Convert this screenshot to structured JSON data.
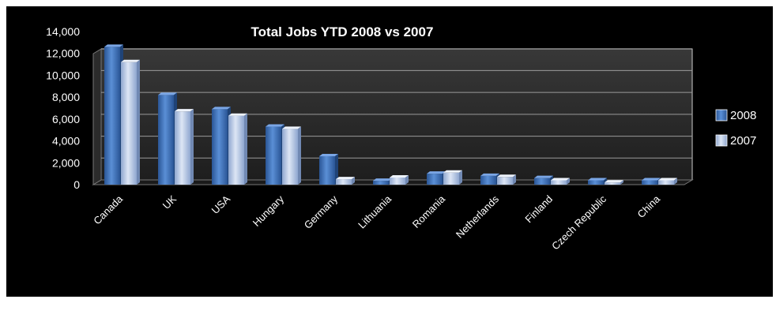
{
  "chart_data": {
    "type": "bar",
    "title": "Total Jobs  YTD 2008 vs 2007",
    "xlabel": "",
    "ylabel": "",
    "ylim": [
      0,
      14000
    ],
    "yticks": [
      "0",
      "2,000",
      "4,000",
      "6,000",
      "8,000",
      "10,000",
      "12,000",
      "14,000"
    ],
    "grid": true,
    "legend": "right",
    "categories": [
      "Canada",
      "UK",
      "USA",
      "Hungary",
      "Germany",
      "Lithuania",
      "Romania",
      "Netherlands",
      "Finland",
      "Czech Republic",
      "China"
    ],
    "series": [
      {
        "name": "2008",
        "color": "#3d6fb5",
        "values": [
          12600,
          8200,
          6900,
          5300,
          2600,
          350,
          1000,
          800,
          600,
          400,
          400
        ]
      },
      {
        "name": "2007",
        "color": "#b3c5e3",
        "values": [
          11200,
          6700,
          6300,
          5100,
          500,
          650,
          1100,
          700,
          400,
          200,
          400
        ]
      }
    ]
  }
}
